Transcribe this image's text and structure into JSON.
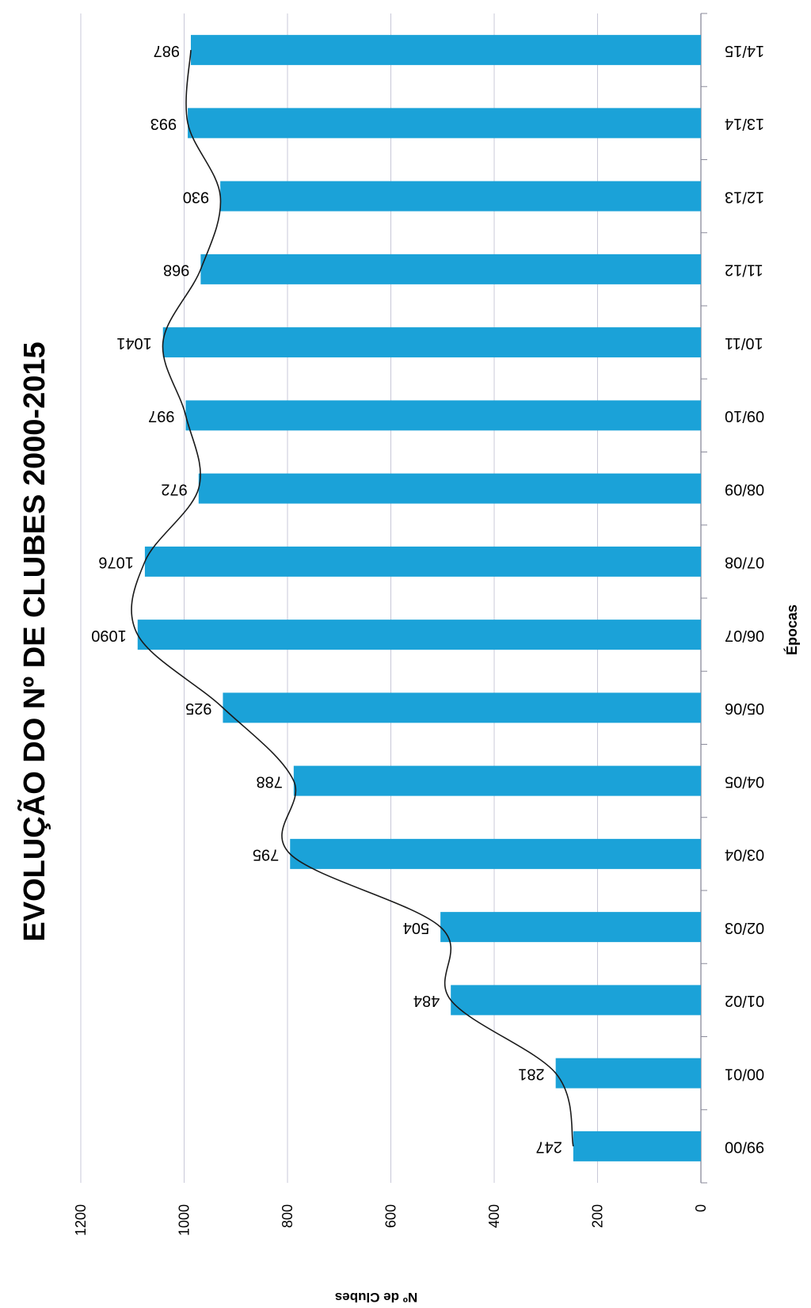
{
  "chart_data": {
    "type": "bar",
    "title": "EVOLUÇÃO DO Nº DE CLUBES 2000-2015",
    "xlabel": "Épocas",
    "ylabel": "Nº de Clubes",
    "categories": [
      "99/00",
      "00/01",
      "01/02",
      "02/03",
      "03/04",
      "04/05",
      "05/06",
      "06/07",
      "07/08",
      "08/09",
      "09/10",
      "10/11",
      "11/12",
      "12/13",
      "13/14",
      "14/15"
    ],
    "series": [
      {
        "values": [
          247,
          281,
          484,
          504,
          795,
          788,
          925,
          1090,
          1076,
          972,
          997,
          1041,
          968,
          930,
          993,
          987
        ]
      }
    ],
    "data_labels": [
      "247",
      "281",
      "484",
      "504",
      "795",
      "788",
      "925",
      "1090",
      "1076",
      "972",
      "997",
      "1041",
      "968",
      "930",
      "993",
      "987"
    ],
    "y_ticks": [
      "0",
      "200",
      "400",
      "600",
      "800",
      "1000",
      "1200"
    ],
    "ylim": [
      0,
      1200
    ],
    "grid": true,
    "trendline": true,
    "orientation": "rotated-90",
    "colors": {
      "bar": "#1ba2d8",
      "grid": "#c8c8d8",
      "trend": "#1a1a1a",
      "text": "#000000"
    }
  }
}
